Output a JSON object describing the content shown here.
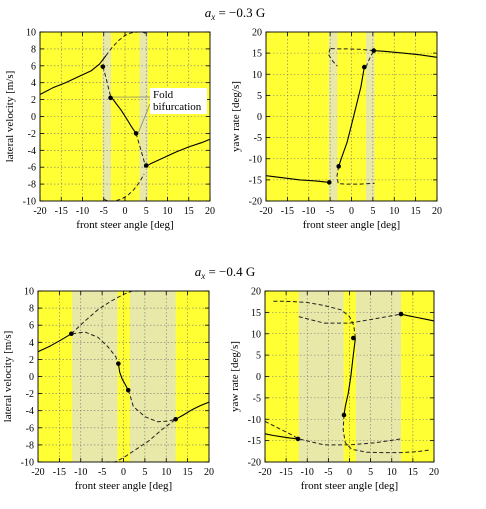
{
  "chart_data": [
    {
      "type": "line",
      "title_sym": "a",
      "title_sub": "x",
      "title_value": " = −0.3 G",
      "xlabel": "front steer angle [deg]",
      "ylabel": "lateral velocity [m/s]",
      "xlim": [
        -20,
        20
      ],
      "ylim": [
        -10,
        10
      ],
      "xticks": [
        "-20",
        "-15",
        "-10",
        "-5",
        "0",
        "5",
        "10",
        "15",
        "20"
      ],
      "yticks": [
        "10",
        "8",
        "6",
        "4",
        "2",
        "0",
        "-2",
        "-4",
        "-6",
        "-8",
        "-10"
      ],
      "grid": true,
      "background_color": "#ffff33",
      "band_color": "#e8e8a8",
      "bands": [
        [
          -5.3,
          -3.3
        ],
        [
          3.4,
          5.4
        ]
      ],
      "annotation": {
        "lines": [
          "Fold",
          "bifurcation"
        ],
        "at": [
          -3.3,
          2.3
        ],
        "to": [
          2.6,
          -2.0
        ]
      },
      "series": [
        {
          "style": "solid",
          "x": [
            -20,
            -17,
            -14,
            -11,
            -8,
            -6,
            -4.5
          ],
          "y": [
            2.6,
            3.4,
            4.0,
            4.7,
            5.4,
            6.2,
            7.2
          ]
        },
        {
          "style": "dashed",
          "x": [
            -4.5,
            -3,
            -1.5,
            0,
            1.5,
            3,
            4.2,
            5
          ],
          "y": [
            7.2,
            8.2,
            9.0,
            9.6,
            9.9,
            10,
            10,
            9.8
          ]
        },
        {
          "style": "dashed",
          "x": [
            -5.2,
            -4.6,
            -4.0,
            -3.4
          ],
          "y": [
            5.9,
            4.8,
            3.6,
            2.4
          ]
        },
        {
          "style": "solid",
          "x": [
            -3.4,
            -2.2,
            -1.0,
            0.3,
            1.5,
            2.6
          ],
          "y": [
            2.4,
            1.6,
            0.8,
            -0.2,
            -1.2,
            -2.0
          ]
        },
        {
          "style": "dashed",
          "x": [
            2.6,
            3.3,
            4.0,
            4.6,
            5.2
          ],
          "y": [
            -2.0,
            -3.2,
            -4.4,
            -5.5,
            -6.0
          ]
        },
        {
          "style": "dashed",
          "x": [
            -5,
            -4.0,
            -2.5,
            -1,
            0.5,
            2,
            3.5,
            4.5
          ],
          "y": [
            -9.8,
            -10,
            -10,
            -9.8,
            -9.4,
            -8.7,
            -7.7,
            -6.8
          ]
        },
        {
          "style": "solid",
          "x": [
            4.5,
            6,
            9,
            12,
            15,
            18,
            20
          ],
          "y": [
            -6.0,
            -5.6,
            -4.9,
            -4.2,
            -3.6,
            -3.1,
            -2.7
          ]
        }
      ],
      "points": [
        {
          "x": -5.2,
          "y": 5.9
        },
        {
          "x": -3.4,
          "y": 2.2
        },
        {
          "x": 2.6,
          "y": -2.0
        },
        {
          "x": 5.0,
          "y": -5.8
        }
      ]
    },
    {
      "type": "line",
      "xlabel": "front steer angle [deg]",
      "ylabel": "yaw rate [deg/s]",
      "xlim": [
        -20,
        20
      ],
      "ylim": [
        -20,
        20
      ],
      "xticks": [
        "-20",
        "-15",
        "-10",
        "-5",
        "0",
        "5",
        "10",
        "15",
        "20"
      ],
      "yticks": [
        "20",
        "15",
        "10",
        "5",
        "0",
        "-5",
        "-10",
        "-15",
        "-20"
      ],
      "grid": true,
      "background_color": "#ffff33",
      "band_color": "#e8e8a8",
      "bands": [
        [
          -5.3,
          -3.3
        ],
        [
          3.4,
          5.4
        ]
      ],
      "series": [
        {
          "style": "solid",
          "x": [
            5.2,
            8,
            12,
            16,
            20
          ],
          "y": [
            15.6,
            15.4,
            15.0,
            14.6,
            14.0
          ]
        },
        {
          "style": "dashed",
          "x": [
            5.2,
            2,
            -1,
            -3,
            -5
          ],
          "y": [
            15.6,
            15.9,
            16.0,
            16.0,
            16.1
          ]
        },
        {
          "style": "dashed",
          "x": [
            -5,
            -5.4,
            -4.3,
            -3.3
          ],
          "y": [
            16.1,
            14.7,
            13.0,
            11.9
          ]
        },
        {
          "style": "solid",
          "x": [
            3.0,
            2.2,
            0.5,
            -1.0,
            -2.4,
            -3.0
          ],
          "y": [
            11.7,
            7.0,
            0,
            -6,
            -10,
            -11.8
          ]
        },
        {
          "style": "dashed",
          "x": [
            -3.0,
            -3.4,
            -3.1,
            -1,
            2,
            5.4
          ],
          "y": [
            -11.8,
            -14.0,
            -15.9,
            -16.0,
            -16.0,
            -15.8
          ]
        },
        {
          "style": "dashed",
          "x": [
            3.4,
            3.9,
            4.6,
            5.4
          ],
          "y": [
            11.7,
            13.0,
            14.5,
            15.6
          ]
        },
        {
          "style": "solid",
          "x": [
            -20,
            -16,
            -12,
            -8,
            -5.2
          ],
          "y": [
            -14.0,
            -14.5,
            -15.0,
            -15.3,
            -15.6
          ]
        }
      ],
      "points": [
        {
          "x": 5.2,
          "y": 15.6
        },
        {
          "x": 3.0,
          "y": 11.7
        },
        {
          "x": -3.0,
          "y": -11.8
        },
        {
          "x": -5.2,
          "y": -15.6
        }
      ]
    },
    {
      "type": "line",
      "title_sym": "a",
      "title_sub": "x",
      "title_value": " = −0.4 G",
      "xlabel": "front steer angle [deg]",
      "ylabel": "lateral velocity [m/s]",
      "xlim": [
        -20,
        20
      ],
      "ylim": [
        -10,
        10
      ],
      "xticks": [
        "-20",
        "-15",
        "-10",
        "-5",
        "0",
        "5",
        "10",
        "15",
        "20"
      ],
      "yticks": [
        "10",
        "8",
        "6",
        "4",
        "2",
        "0",
        "-2",
        "-4",
        "-6",
        "-8",
        "-10"
      ],
      "grid": true,
      "background_color": "#ffff33",
      "band_color": "#e8e8a8",
      "bands": [
        [
          -12.0,
          -1.4
        ],
        [
          1.5,
          12.2
        ]
      ],
      "series": [
        {
          "style": "solid",
          "x": [
            -20,
            -17,
            -14.5,
            -12.2
          ],
          "y": [
            2.9,
            3.6,
            4.3,
            5.0
          ]
        },
        {
          "style": "dashed",
          "x": [
            -12.2,
            -9,
            -6,
            -3,
            0,
            2,
            3.5
          ],
          "y": [
            5.0,
            6.5,
            7.8,
            8.8,
            9.6,
            10,
            10
          ]
        },
        {
          "style": "dashed",
          "x": [
            -12,
            -9,
            -6,
            -3.5,
            -1.8,
            -1.2
          ],
          "y": [
            5.0,
            5.2,
            4.6,
            3.4,
            2.3,
            1.5
          ]
        },
        {
          "style": "solid",
          "x": [
            -1.2,
            -0.9,
            -0.3,
            0.5,
            1.1
          ],
          "y": [
            1.5,
            0.5,
            -0.3,
            -1.0,
            -1.6
          ]
        },
        {
          "style": "dashed",
          "x": [
            1.1,
            1.6,
            2.3,
            5,
            8,
            10.5,
            12.2
          ],
          "y": [
            -1.6,
            -2.3,
            -3.5,
            -4.7,
            -5.3,
            -5.2,
            -5.0
          ]
        },
        {
          "style": "dashed",
          "x": [
            -4,
            -2,
            0,
            3,
            6,
            9,
            12.2
          ],
          "y": [
            -10,
            -10,
            -9.5,
            -8.5,
            -7.5,
            -6.2,
            -5.0
          ]
        },
        {
          "style": "solid",
          "x": [
            12.2,
            14,
            16,
            18,
            20
          ],
          "y": [
            -5.0,
            -4.5,
            -3.9,
            -3.4,
            -3.0
          ]
        }
      ],
      "points": [
        {
          "x": -12.2,
          "y": 5.0
        },
        {
          "x": -1.2,
          "y": 1.5
        },
        {
          "x": 1.1,
          "y": -1.6
        },
        {
          "x": 12.2,
          "y": -5.0
        }
      ]
    },
    {
      "type": "line",
      "xlabel": "front steer angle [deg]",
      "ylabel": "yaw rate [deg/s]",
      "xlim": [
        -20,
        20
      ],
      "ylim": [
        -20,
        20
      ],
      "xticks": [
        "-20",
        "-15",
        "-10",
        "-5",
        "0",
        "5",
        "10",
        "15",
        "20"
      ],
      "yticks": [
        "20",
        "15",
        "10",
        "5",
        "0",
        "-5",
        "-10",
        "-15",
        "-20"
      ],
      "grid": true,
      "background_color": "#ffff33",
      "band_color": "#e8e8a8",
      "bands": [
        [
          -12.0,
          -1.4
        ],
        [
          1.5,
          12.2
        ]
      ],
      "series": [
        {
          "style": "dashed",
          "x": [
            -18,
            -15,
            -10,
            -6,
            -2,
            0,
            1,
            1.4
          ],
          "y": [
            17.6,
            17.6,
            17.3,
            16.6,
            15.6,
            14.0,
            12.0,
            9.0
          ]
        },
        {
          "style": "solid",
          "x": [
            1.4,
            0.9,
            0.3,
            -0.3,
            -1.0,
            -1.3
          ],
          "y": [
            9.0,
            5.0,
            0,
            -4,
            -7,
            -9.0
          ]
        },
        {
          "style": "dashed",
          "x": [
            -1.3,
            -1.5,
            -1,
            0.5,
            4,
            8,
            12,
            16,
            19
          ],
          "y": [
            -9.0,
            -12.5,
            -15.5,
            -17,
            -17.7,
            -17.8,
            -17.8,
            -17.6,
            -17.2
          ]
        },
        {
          "style": "dashed",
          "x": [
            -20,
            -17,
            -14,
            -12,
            -6,
            0,
            6,
            12.2
          ],
          "y": [
            -10.5,
            -12,
            -13.5,
            -14.6,
            -16,
            -16,
            -15.5,
            -14.6
          ]
        },
        {
          "style": "dashed",
          "x": [
            -12,
            -6,
            0,
            6,
            12.2
          ],
          "y": [
            14.0,
            12.5,
            12.5,
            13.5,
            14.6
          ]
        },
        {
          "style": "solid",
          "x": [
            12.2,
            14,
            16,
            18,
            20
          ],
          "y": [
            14.6,
            14.2,
            13.8,
            13.4,
            13.0
          ]
        },
        {
          "style": "solid",
          "x": [
            -20,
            -18,
            -16,
            -14,
            -12.2
          ],
          "y": [
            -13.4,
            -13.8,
            -14.1,
            -14.4,
            -14.6
          ]
        }
      ],
      "points": [
        {
          "x": 12.2,
          "y": 14.6
        },
        {
          "x": 0.9,
          "y": 9.0
        },
        {
          "x": -1.3,
          "y": -9.0
        },
        {
          "x": -12.2,
          "y": -14.6
        }
      ]
    }
  ]
}
